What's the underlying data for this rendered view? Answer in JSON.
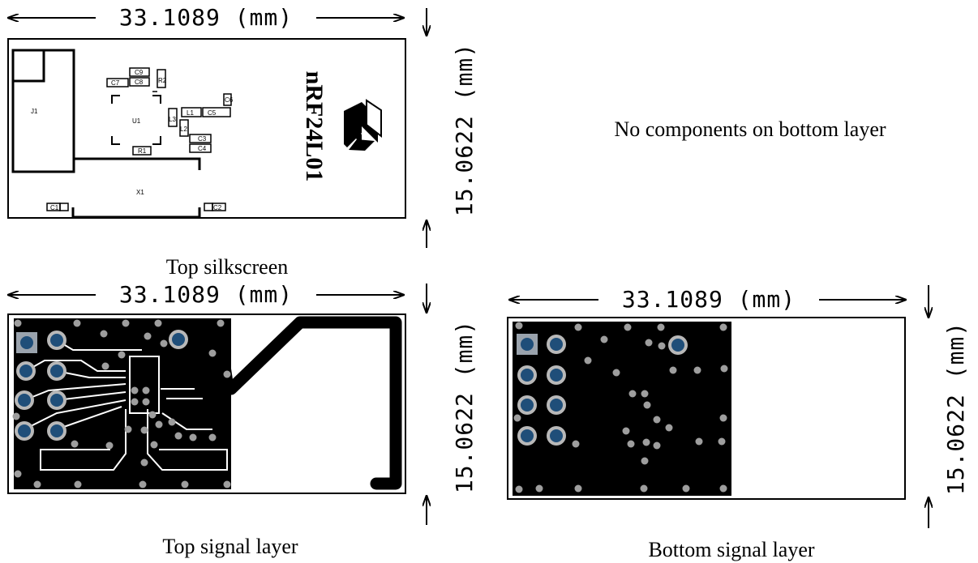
{
  "panels": {
    "top_silkscreen": {
      "width_label": "33.1089 (mm)",
      "height_label": "15.0622 (mm)",
      "caption": "Top silkscreen",
      "chip_label": "nRF24L01",
      "components": [
        "J1",
        "U1",
        "X1",
        "C1",
        "C2",
        "C3",
        "C4",
        "C5",
        "C6",
        "C7",
        "C8",
        "C9",
        "L1",
        "L2",
        "L3",
        "R1",
        "R2"
      ]
    },
    "bottom_note": "No components on bottom layer",
    "top_signal": {
      "width_label": "33.1089 (mm)",
      "height_label": "15.0622 (mm)",
      "caption": "Top signal layer"
    },
    "bottom_signal": {
      "width_label": "33.1089 (mm)",
      "height_label": "15.0622 (mm)",
      "caption": "Bottom signal layer"
    }
  }
}
